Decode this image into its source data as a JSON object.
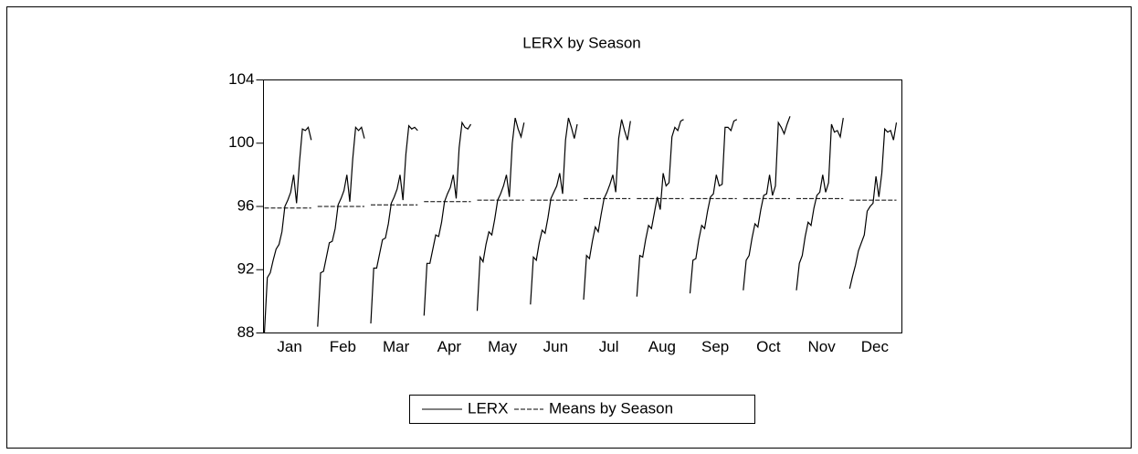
{
  "chart_data": {
    "type": "seasonal_line",
    "title": "LERX by Season",
    "categories": [
      "Jan",
      "Feb",
      "Mar",
      "Apr",
      "May",
      "Jun",
      "Jul",
      "Aug",
      "Sep",
      "Oct",
      "Nov",
      "Dec"
    ],
    "ylim": [
      88,
      104
    ],
    "yticks": [
      88,
      92,
      96,
      100,
      104
    ],
    "series": [
      {
        "name": "LERX",
        "color": "#000000",
        "dash": false,
        "values": [
          [
            88.0,
            91.5,
            91.8,
            92.6,
            93.3,
            93.6,
            94.4,
            96.0,
            96.4,
            96.9,
            98.0,
            96.2,
            98.8,
            100.9,
            100.8,
            101.0,
            100.2
          ],
          [
            88.4,
            91.8,
            91.9,
            92.8,
            93.7,
            93.8,
            94.6,
            96.1,
            96.5,
            97.0,
            98.0,
            96.3,
            99.0,
            101.0,
            100.8,
            101.0,
            100.3
          ],
          [
            88.6,
            92.1,
            92.1,
            93.0,
            93.9,
            94.0,
            94.9,
            96.2,
            96.6,
            97.1,
            98.0,
            96.4,
            99.3,
            101.1,
            100.9,
            101.0,
            100.8
          ],
          [
            89.1,
            92.4,
            92.4,
            93.3,
            94.2,
            94.1,
            95.0,
            96.3,
            96.8,
            97.2,
            98.0,
            96.5,
            99.7,
            101.3,
            101.0,
            100.9,
            101.2
          ],
          [
            89.4,
            92.8,
            92.5,
            93.6,
            94.4,
            94.2,
            95.2,
            96.4,
            96.8,
            97.3,
            98.0,
            96.6,
            100.0,
            101.6,
            100.9,
            100.4,
            101.3
          ],
          [
            89.8,
            92.8,
            92.6,
            93.7,
            94.5,
            94.3,
            95.3,
            96.5,
            96.9,
            97.3,
            98.1,
            96.8,
            100.2,
            101.6,
            101.0,
            100.3,
            101.2
          ],
          [
            90.1,
            92.9,
            92.7,
            93.8,
            94.7,
            94.4,
            95.5,
            96.5,
            96.9,
            97.4,
            98.0,
            96.9,
            100.3,
            101.5,
            100.8,
            100.2,
            101.4
          ],
          [
            90.3,
            92.9,
            92.8,
            93.9,
            94.8,
            94.6,
            95.6,
            96.6,
            95.8,
            98.1,
            97.3,
            97.5,
            100.4,
            101.0,
            100.8,
            101.4,
            101.5
          ],
          [
            90.5,
            92.6,
            92.7,
            93.9,
            94.8,
            94.6,
            95.7,
            96.6,
            96.8,
            98.0,
            97.3,
            97.4,
            101.0,
            101.0,
            100.8,
            101.4,
            101.5
          ],
          [
            90.7,
            92.6,
            92.9,
            94.0,
            94.9,
            94.7,
            95.8,
            96.7,
            96.8,
            98.0,
            96.7,
            97.3,
            101.3,
            101.0,
            100.6,
            101.2,
            101.7
          ],
          [
            90.7,
            92.4,
            92.9,
            94.1,
            95.0,
            94.8,
            95.9,
            96.7,
            96.9,
            98.0,
            96.9,
            97.5,
            101.2,
            100.7,
            100.8,
            100.4,
            101.6
          ],
          [
            90.8,
            91.6,
            92.3,
            93.2,
            93.7,
            94.2,
            95.7,
            96.0,
            96.2,
            97.9,
            96.6,
            98.1,
            100.9,
            100.7,
            100.8,
            100.2,
            101.3
          ]
        ]
      },
      {
        "name": "Means by Season",
        "color": "#000000",
        "dash": true,
        "values": [
          95.9,
          96.0,
          96.1,
          96.3,
          96.4,
          96.4,
          96.5,
          96.5,
          96.5,
          96.5,
          96.5,
          96.4
        ]
      }
    ]
  }
}
